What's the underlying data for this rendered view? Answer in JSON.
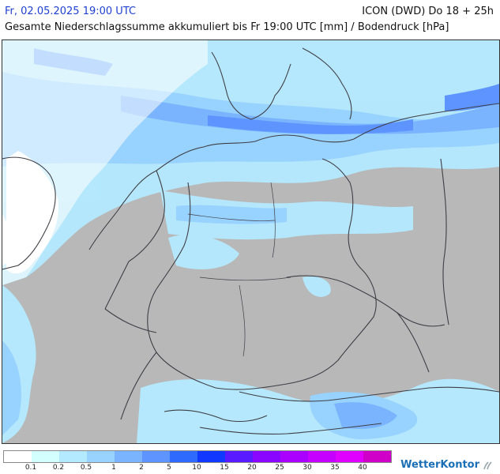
{
  "header": {
    "date": "Fr, 02.05.2025 19:00 UTC",
    "model": "ICON (DWD) Do 18 + 25h",
    "title": "Gesamte Niederschlagssumme akkumuliert bis Fr 19:00 UTC [mm] / Bodendruck [hPa]"
  },
  "legend": {
    "colors": [
      "#ffffff",
      "#d4ffff",
      "#b4eaff",
      "#98d2ff",
      "#7ab4ff",
      "#5e94ff",
      "#2f6aff",
      "#1038ff",
      "#5a1aff",
      "#8b06ff",
      "#a900ff",
      "#c600ff",
      "#e000ff",
      "#d000c8"
    ],
    "labels": [
      "0.1",
      "0.2",
      "0.5",
      "1",
      "2",
      "5",
      "10",
      "15",
      "20",
      "25",
      "30",
      "35",
      "40"
    ]
  },
  "brand": {
    "name": "WetterKontor"
  },
  "map": {
    "land_color": "#b8b8b8",
    "sea_color": "#ffffff",
    "border_color": "#444444"
  }
}
